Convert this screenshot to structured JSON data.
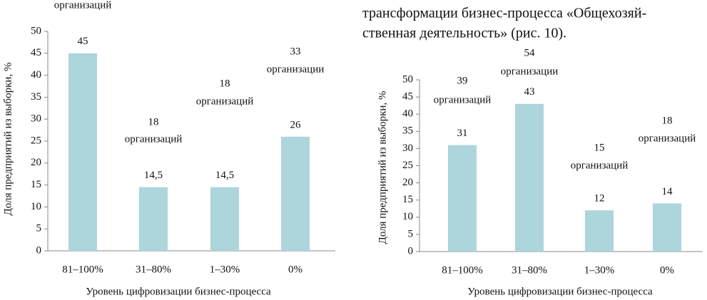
{
  "document": {
    "paragraph": [
      "трансформации бизнес-процесса «Общехозяй-",
      "ственная деятельность» (рис. 10)."
    ]
  },
  "chart_data": [
    {
      "type": "bar",
      "color": "#acd5dc",
      "categories": [
        "81–100%",
        "31–80%",
        "1–30%",
        "0%"
      ],
      "values": [
        45,
        14.5,
        14.5,
        26
      ],
      "value_labels": [
        "45",
        "14,5",
        "14,5",
        "26"
      ],
      "annotations": [
        [
          "организаций"
        ],
        [
          "18",
          "организаций"
        ],
        [
          "18",
          "организаций"
        ],
        [
          "33",
          "организации"
        ]
      ],
      "x_label": "Уровень цифровизации бизнес-процесса",
      "y_label": "Доля предприятий из выборки, %",
      "ylim": [
        0,
        50
      ],
      "yticks": [
        0,
        5,
        10,
        15,
        20,
        25,
        30,
        35,
        40,
        45,
        50
      ]
    },
    {
      "type": "bar",
      "color": "#acd5dc",
      "categories": [
        "81–100%",
        "31–80%",
        "1–30%",
        "0%"
      ],
      "values": [
        31,
        43,
        12,
        14
      ],
      "annotations": [
        [
          "39",
          "организаций"
        ],
        [
          "54",
          "организации"
        ],
        [
          "15",
          "организаций"
        ],
        [
          "18",
          "организаций"
        ]
      ],
      "x_label": "Уровень цифровизации бизнес-процесса",
      "y_label": "Доля предприятий из выборки, %",
      "ylim": [
        0,
        50
      ],
      "yticks": [
        0,
        5,
        10,
        15,
        20,
        25,
        30,
        35,
        40,
        45,
        50
      ]
    }
  ]
}
